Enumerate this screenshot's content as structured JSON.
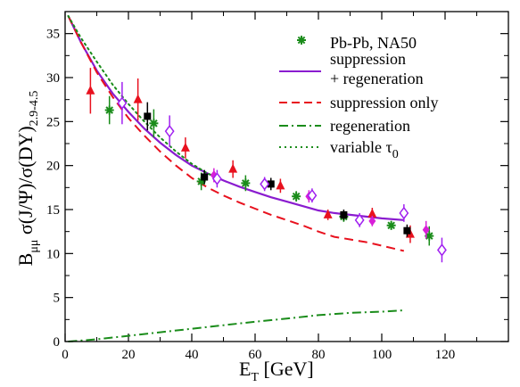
{
  "chart_data": {
    "type": "scatter",
    "xlim": [
      0,
      140
    ],
    "ylim": [
      0,
      37.5
    ],
    "xticks": [
      0,
      20,
      40,
      60,
      80,
      100,
      120
    ],
    "yticks": [
      0,
      5,
      10,
      15,
      20,
      25,
      30,
      35
    ],
    "xlabel": {
      "main": "E",
      "sub": "T",
      "rest": " [GeV]"
    },
    "ylabel": {
      "b": "B",
      "b_sub": "μμ",
      "body": " σ(J/Ψ)/σ(DY)",
      "body_sub": "2.9-4.5"
    },
    "grid": false,
    "legend_position": "top-right",
    "colors": {
      "nagreen": "#1a8c1a",
      "supreg": "#8a1ccf",
      "suponly": "#e8111e",
      "regen": "#1a8c1a",
      "vartau": "#1a8c1a",
      "red_data": "#e8111e",
      "black_data": "#000000",
      "magenta_data": "#d81fd8",
      "violet_data": "#a020f0"
    },
    "legend": [
      {
        "label": "Pb-Pb, NA50",
        "style": "star",
        "color": "#1a8c1a"
      },
      {
        "label": "suppression",
        "label2": "+ regeneration",
        "style": "solid",
        "color": "#8a1ccf"
      },
      {
        "label": "suppression only",
        "style": "dashed",
        "color": "#e8111e"
      },
      {
        "label": "regeneration",
        "style": "dashdot",
        "color": "#1a8c1a"
      },
      {
        "label": "variable τ",
        "sub": "0",
        "style": "dotted",
        "color": "#1a8c1a"
      }
    ],
    "curves": [
      {
        "name": "suppression + regeneration",
        "style": "solid",
        "color": "#8a1ccf",
        "x": [
          1,
          5,
          10,
          15,
          20,
          25,
          30,
          35,
          40,
          45,
          50,
          55,
          60,
          65,
          70,
          75,
          80,
          85,
          90,
          95,
          100,
          107
        ],
        "y": [
          37,
          34,
          30.8,
          28.2,
          26.1,
          24.2,
          22.6,
          21.2,
          20.0,
          19.1,
          18.3,
          17.6,
          17.0,
          16.4,
          15.9,
          15.4,
          14.9,
          14.6,
          14.4,
          14.2,
          14.0,
          13.8
        ]
      },
      {
        "name": "suppression only",
        "style": "dashed",
        "color": "#e8111e",
        "x": [
          1,
          5,
          10,
          15,
          20,
          25,
          30,
          35,
          40,
          45,
          50,
          55,
          60,
          65,
          70,
          75,
          80,
          85,
          90,
          95,
          100,
          107
        ],
        "y": [
          37,
          34,
          30.6,
          27.8,
          25.4,
          23.4,
          21.6,
          20.0,
          18.6,
          17.5,
          16.6,
          15.8,
          15.1,
          14.4,
          13.8,
          13.2,
          12.5,
          11.9,
          11.6,
          11.3,
          10.9,
          10.3
        ]
      },
      {
        "name": "regeneration",
        "style": "dashdot",
        "color": "#1a8c1a",
        "x": [
          1,
          10,
          20,
          30,
          40,
          50,
          60,
          70,
          80,
          90,
          100,
          107
        ],
        "y": [
          0,
          0.25,
          0.65,
          1.05,
          1.45,
          1.85,
          2.25,
          2.6,
          3.0,
          3.25,
          3.4,
          3.55
        ]
      },
      {
        "name": "variable tau0",
        "style": "dotted",
        "color": "#1a8c1a",
        "x": [
          1,
          5,
          10,
          15,
          20,
          25,
          30,
          35,
          40,
          45,
          50
        ],
        "y": [
          37,
          34.5,
          31.8,
          29.2,
          27.0,
          25.0,
          23.2,
          21.6,
          20.2,
          19.1,
          18.3
        ]
      }
    ],
    "series": [
      {
        "name": "Pb-Pb, NA50",
        "marker": "star",
        "color": "#1a8c1a",
        "points": [
          {
            "x": 14,
            "y": 26.3,
            "err": 1.6
          },
          {
            "x": 28,
            "y": 24.8,
            "err": 1.6
          },
          {
            "x": 43,
            "y": 18.2,
            "err": 1.0
          },
          {
            "x": 57,
            "y": 18.0,
            "err": 0.9
          },
          {
            "x": 73,
            "y": 16.5,
            "err": 0.6
          },
          {
            "x": 88,
            "y": 14.2,
            "err": 0.6
          },
          {
            "x": 103,
            "y": 13.2,
            "err": 0.5
          },
          {
            "x": 115,
            "y": 12.0,
            "err": 1.1
          }
        ]
      },
      {
        "name": "red triangles",
        "marker": "triangle",
        "color": "#e8111e",
        "points": [
          {
            "x": 8,
            "y": 28.5,
            "err": 2.6
          },
          {
            "x": 23,
            "y": 27.5,
            "err": 2.4
          },
          {
            "x": 38,
            "y": 22.0,
            "err": 1.2
          },
          {
            "x": 53,
            "y": 19.6,
            "err": 1.0
          },
          {
            "x": 68,
            "y": 17.7,
            "err": 0.8
          },
          {
            "x": 83,
            "y": 14.4,
            "err": 0.6
          },
          {
            "x": 97,
            "y": 14.5,
            "err": 0.7
          },
          {
            "x": 109,
            "y": 12.2,
            "err": 1.0
          }
        ]
      },
      {
        "name": "black squares",
        "marker": "square",
        "color": "#000000",
        "points": [
          {
            "x": 26,
            "y": 25.6,
            "err": 1.6
          },
          {
            "x": 44,
            "y": 18.7,
            "err": 0.8
          },
          {
            "x": 65,
            "y": 17.9,
            "err": 0.7
          },
          {
            "x": 88,
            "y": 14.4,
            "err": 0.6
          },
          {
            "x": 108,
            "y": 12.6,
            "err": 0.7
          }
        ]
      },
      {
        "name": "magenta diamonds",
        "marker": "diamond-filled",
        "color": "#d81fd8",
        "points": [
          {
            "x": 47,
            "y": 18.9,
            "err": 0.8
          },
          {
            "x": 77,
            "y": 16.5,
            "err": 0.7
          },
          {
            "x": 97,
            "y": 13.7,
            "err": 0.6
          },
          {
            "x": 114,
            "y": 12.7,
            "err": 1.0
          }
        ]
      },
      {
        "name": "violet open diamonds",
        "marker": "diamond-open",
        "color": "#a020f0",
        "points": [
          {
            "x": 18,
            "y": 27.1,
            "err": 2.4
          },
          {
            "x": 33,
            "y": 23.9,
            "err": 1.8
          },
          {
            "x": 48,
            "y": 18.5,
            "err": 1.0
          },
          {
            "x": 63,
            "y": 17.9,
            "err": 0.8
          },
          {
            "x": 78,
            "y": 16.6,
            "err": 0.8
          },
          {
            "x": 93,
            "y": 13.8,
            "err": 0.8
          },
          {
            "x": 107,
            "y": 14.6,
            "err": 1.0
          },
          {
            "x": 119,
            "y": 10.4,
            "err": 1.4
          }
        ]
      }
    ]
  }
}
